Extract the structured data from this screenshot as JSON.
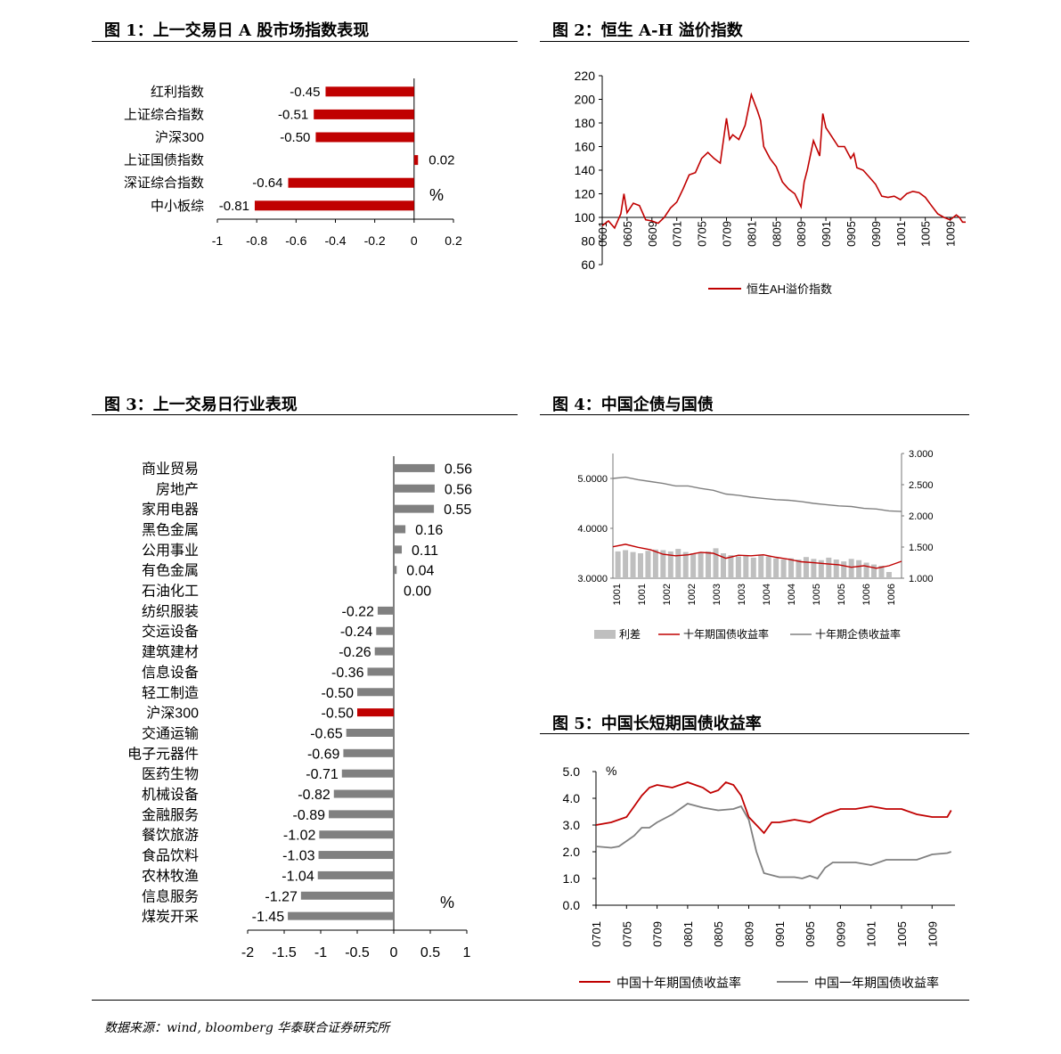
{
  "source": "数据来源：wind, bloomberg 华泰联合证券研究所",
  "colors": {
    "red": "#c00000",
    "grey": "#808080",
    "lightgrey": "#bfbfbf"
  },
  "figures": [
    {
      "title": "图 1：上一交易日 A 股市场指数表现"
    },
    {
      "title": "图 2：恒生 A-H 溢价指数"
    },
    {
      "title": "图 3：上一交易日行业表现"
    },
    {
      "title": "图 4：中国企债与国债"
    },
    {
      "title": "图 5：中国长短期国债收益率"
    }
  ],
  "chart_data": [
    {
      "type": "bar",
      "orientation": "horizontal",
      "title": "图 1：上一交易日 A 股市场指数表现",
      "categories": [
        "红利指数",
        "上证综合指数",
        "沪深300",
        "上证国债指数",
        "深证综合指数",
        "中小板综"
      ],
      "values": [
        -0.45,
        -0.51,
        -0.5,
        0.02,
        -0.64,
        -0.81
      ],
      "value_labels": [
        "-0.45",
        "-0.51",
        "-0.50",
        "0.02",
        "-0.64",
        "-0.81"
      ],
      "unit_label": "%",
      "xlim": [
        -1,
        0.2
      ],
      "xticks": [
        -1,
        -0.8,
        -0.6,
        -0.4,
        -0.2,
        0,
        0.2
      ],
      "xtick_labels": [
        "-1",
        "-0.8",
        "-0.6",
        "-0.4",
        "-0.2",
        "0",
        "0.2"
      ],
      "bar_color": "#c00000",
      "grid": false
    },
    {
      "type": "line",
      "title": "图 2：恒生 A-H 溢价指数",
      "ylim": [
        60,
        220
      ],
      "yticks": [
        60,
        80,
        100,
        120,
        140,
        160,
        180,
        200,
        220
      ],
      "ytick_labels": [
        "60",
        "80",
        "100",
        "120",
        "140",
        "160",
        "180",
        "200",
        "220"
      ],
      "xtick_labels": [
        "0601",
        "0605",
        "0609",
        "0701",
        "0705",
        "0709",
        "0801",
        "0805",
        "0809",
        "0901",
        "0905",
        "0909",
        "1001",
        "1005",
        "1009"
      ],
      "x_positions": [
        0,
        4,
        8,
        12,
        16,
        20,
        24,
        28,
        32,
        36,
        40,
        44,
        48,
        52,
        56
      ],
      "x_range": [
        0,
        58.5
      ],
      "baseline_y": 100,
      "legend": [
        "恒生AH溢价指数"
      ],
      "series": [
        {
          "name": "恒生AH溢价指数",
          "color": "#c00000",
          "x": [
            0,
            1,
            2,
            3,
            3.5,
            4,
            5,
            6,
            7,
            8,
            9,
            10,
            11,
            12,
            13,
            14,
            15,
            16,
            17,
            18,
            19,
            20,
            20.5,
            21,
            22,
            23,
            24,
            25,
            25.5,
            26,
            27,
            28,
            29,
            30,
            31,
            32,
            32.5,
            33,
            34,
            35,
            35.5,
            36,
            37,
            38,
            39,
            40,
            40.5,
            41,
            42,
            43,
            44,
            45,
            46,
            47,
            48,
            49,
            50,
            51,
            52,
            53,
            54,
            55,
            56,
            57,
            57.5,
            58,
            58.5
          ],
          "y": [
            93,
            97,
            91,
            103,
            120,
            104,
            112,
            110,
            98,
            97,
            95,
            100,
            108,
            113,
            124,
            136,
            138,
            150,
            155,
            150,
            146,
            184,
            166,
            170,
            166,
            178,
            204,
            190,
            182,
            160,
            150,
            143,
            130,
            124,
            120,
            109,
            130,
            140,
            165,
            152,
            188,
            176,
            168,
            160,
            160,
            150,
            154,
            142,
            140,
            134,
            128,
            118,
            117,
            118,
            115,
            120,
            122,
            121,
            117,
            110,
            103,
            100,
            98,
            102,
            100,
            96,
            96
          ]
        }
      ]
    },
    {
      "type": "bar",
      "orientation": "horizontal",
      "title": "图 3：上一交易日行业表现",
      "categories": [
        "商业贸易",
        "房地产",
        "家用电器",
        "黑色金属",
        "公用事业",
        "有色金属",
        "石油化工",
        "纺织服装",
        "交运设备",
        "建筑建材",
        "信息设备",
        "轻工制造",
        "沪深300",
        "交通运输",
        "电子元器件",
        "医药生物",
        "机械设备",
        "金融服务",
        "餐饮旅游",
        "食品饮料",
        "农林牧渔",
        "信息服务",
        "煤炭开采"
      ],
      "values": [
        0.56,
        0.56,
        0.55,
        0.16,
        0.11,
        0.04,
        0.0,
        -0.22,
        -0.24,
        -0.26,
        -0.36,
        -0.5,
        -0.5,
        -0.65,
        -0.69,
        -0.71,
        -0.82,
        -0.89,
        -1.02,
        -1.03,
        -1.04,
        -1.27,
        -1.45
      ],
      "value_labels": [
        "0.56",
        "0.56",
        "0.55",
        "0.16",
        "0.11",
        "0.04",
        "0.00",
        "-0.22",
        "-0.24",
        "-0.26",
        "-0.36",
        "-0.50",
        "-0.50",
        "-0.65",
        "-0.69",
        "-0.71",
        "-0.82",
        "-0.89",
        "-1.02",
        "-1.03",
        "-1.04",
        "-1.27",
        "-1.45"
      ],
      "highlight": "沪深300",
      "unit_label": "%",
      "xlim": [
        -2,
        1
      ],
      "xticks": [
        -2,
        -1.5,
        -1,
        -0.5,
        0,
        0.5,
        1
      ],
      "xtick_labels": [
        "-2",
        "-1.5",
        "-1",
        "-0.5",
        "0",
        "0.5",
        "1"
      ],
      "bar_color": "#808080",
      "highlight_color": "#c00000",
      "grid": false
    },
    {
      "type": "line",
      "title": "图 4：中国企债与国债",
      "left_ylim": [
        3.0,
        5.5
      ],
      "left_yticks": [
        3.0,
        4.0,
        5.0
      ],
      "left_ytick_labels": [
        "3.0000",
        "4.0000",
        "5.0000"
      ],
      "right_ylim": [
        1.0,
        3.0
      ],
      "right_yticks": [
        1.0,
        1.5,
        2.0,
        2.5,
        3.0
      ],
      "right_ytick_labels": [
        "1.000",
        "1.500",
        "2.000",
        "2.500",
        "3.000"
      ],
      "xtick_labels": [
        "1001",
        "1001",
        "1002",
        "1002",
        "1003",
        "1003",
        "1004",
        "1004",
        "1005",
        "1005",
        "1006",
        "1006"
      ],
      "x_range": [
        0,
        11.5
      ],
      "legend": [
        "利差",
        "十年期国债收益率",
        "十年期企债收益率"
      ],
      "series": [
        {
          "name": "利差",
          "type": "bar",
          "axis": "right",
          "color": "#bfbfbf",
          "x": [
            0.2,
            0.5,
            0.8,
            1.1,
            1.4,
            1.7,
            2.0,
            2.3,
            2.6,
            2.9,
            3.2,
            3.5,
            3.8,
            4.1,
            4.4,
            4.7,
            5.0,
            5.3,
            5.6,
            5.9,
            6.2,
            6.5,
            6.8,
            7.1,
            7.4,
            7.7,
            8.0,
            8.3,
            8.6,
            8.9,
            9.2,
            9.5,
            9.8,
            10.1,
            10.4,
            10.7,
            11.0
          ],
          "y": [
            1.43,
            1.45,
            1.42,
            1.4,
            1.44,
            1.46,
            1.45,
            1.43,
            1.47,
            1.42,
            1.4,
            1.41,
            1.43,
            1.48,
            1.4,
            1.37,
            1.35,
            1.36,
            1.33,
            1.38,
            1.35,
            1.32,
            1.3,
            1.32,
            1.3,
            1.34,
            1.31,
            1.29,
            1.33,
            1.3,
            1.27,
            1.31,
            1.29,
            1.25,
            1.22,
            1.2,
            1.1
          ]
        },
        {
          "name": "十年期国债收益率",
          "axis": "left",
          "color": "#c00000",
          "x": [
            0,
            0.5,
            1,
            1.5,
            2,
            2.5,
            3,
            3.5,
            4,
            4.5,
            5,
            5.5,
            6,
            6.5,
            7,
            7.5,
            8,
            8.5,
            9,
            9.5,
            10,
            10.5,
            11,
            11.5
          ],
          "y": [
            3.63,
            3.68,
            3.62,
            3.57,
            3.48,
            3.45,
            3.47,
            3.52,
            3.5,
            3.4,
            3.46,
            3.45,
            3.47,
            3.42,
            3.38,
            3.33,
            3.31,
            3.29,
            3.27,
            3.22,
            3.25,
            3.2,
            3.25,
            3.34
          ]
        },
        {
          "name": "十年期企债收益率",
          "axis": "right",
          "color": "#808080",
          "x": [
            0,
            0.5,
            1,
            1.5,
            2,
            2.5,
            3,
            3.5,
            4,
            4.5,
            5,
            5.5,
            6,
            6.5,
            7,
            7.5,
            8,
            8.5,
            9,
            9.5,
            10,
            10.5,
            11,
            11.5
          ],
          "y": [
            2.6,
            2.62,
            2.58,
            2.55,
            2.52,
            2.48,
            2.48,
            2.44,
            2.41,
            2.35,
            2.33,
            2.3,
            2.28,
            2.26,
            2.25,
            2.23,
            2.2,
            2.18,
            2.16,
            2.15,
            2.12,
            2.11,
            2.08,
            2.07
          ]
        }
      ]
    },
    {
      "type": "line",
      "title": "图 5：中国长短期国债收益率",
      "ylim": [
        0.0,
        5.0
      ],
      "yticks": [
        0.0,
        1.0,
        2.0,
        3.0,
        4.0,
        5.0
      ],
      "ytick_labels": [
        "0.0",
        "1.0",
        "2.0",
        "3.0",
        "4.0",
        "5.0"
      ],
      "unit_label": "%",
      "xtick_labels": [
        "0701",
        "0705",
        "0709",
        "0801",
        "0805",
        "0809",
        "0901",
        "0905",
        "0909",
        "1001",
        "1005",
        "1009"
      ],
      "x_positions": [
        0,
        4,
        8,
        12,
        16,
        20,
        24,
        28,
        32,
        36,
        40,
        44
      ],
      "x_range": [
        0,
        47
      ],
      "legend": [
        "中国十年期国债收益率",
        "中国一年期国债收益率"
      ],
      "series": [
        {
          "name": "中国十年期国债收益率",
          "color": "#c00000",
          "x": [
            0,
            2,
            4,
            5,
            6,
            7,
            8,
            10,
            12,
            14,
            15,
            16,
            17,
            18,
            19,
            20,
            21,
            22,
            23,
            24,
            26,
            28,
            30,
            32,
            34,
            36,
            38,
            40,
            42,
            44,
            46,
            46.5
          ],
          "y": [
            3.0,
            3.1,
            3.3,
            3.7,
            4.1,
            4.4,
            4.5,
            4.4,
            4.6,
            4.4,
            4.2,
            4.3,
            4.6,
            4.5,
            4.1,
            3.3,
            3.0,
            2.7,
            3.1,
            3.1,
            3.2,
            3.1,
            3.4,
            3.6,
            3.6,
            3.7,
            3.6,
            3.6,
            3.4,
            3.3,
            3.3,
            3.55
          ]
        },
        {
          "name": "中国一年期国债收益率",
          "color": "#808080",
          "x": [
            0,
            2,
            3,
            4,
            5,
            6,
            7,
            8,
            10,
            12,
            14,
            16,
            18,
            19,
            20,
            20.5,
            21,
            22,
            24,
            26,
            27,
            28,
            29,
            30,
            31,
            32,
            34,
            36,
            38,
            40,
            42,
            44,
            46,
            46.5
          ],
          "y": [
            2.2,
            2.15,
            2.2,
            2.4,
            2.6,
            2.9,
            2.9,
            3.1,
            3.4,
            3.8,
            3.65,
            3.55,
            3.6,
            3.7,
            3.2,
            2.6,
            2.0,
            1.2,
            1.05,
            1.05,
            1.0,
            1.1,
            1.0,
            1.4,
            1.6,
            1.6,
            1.6,
            1.5,
            1.7,
            1.7,
            1.7,
            1.9,
            1.95,
            2.0
          ]
        }
      ]
    }
  ]
}
